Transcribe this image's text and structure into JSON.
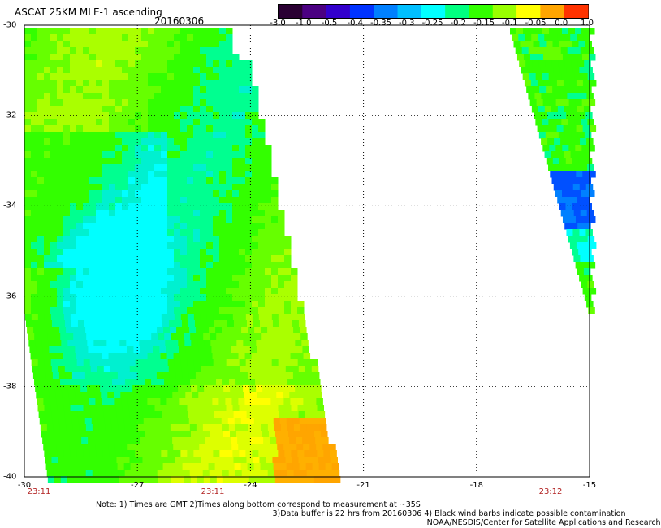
{
  "title": "ASCAT 25KM MLE-1 ascending",
  "date": "20160306",
  "colorbar": {
    "labels": [
      "-3.0",
      "-1.0",
      "-0.5",
      "-0.4",
      "-0.35",
      "-0.3",
      "-0.25",
      "-0.2",
      "-0.15",
      "-0.1",
      "-0.05",
      "0.0",
      "1.0"
    ],
    "colors": [
      "#2a0033",
      "#4b0082",
      "#3300cc",
      "#0033ff",
      "#0080ff",
      "#00bfff",
      "#00ffff",
      "#00ff80",
      "#33ff00",
      "#99ff00",
      "#ffff00",
      "#ffa500",
      "#ff3300"
    ]
  },
  "map": {
    "lon_range": [
      -30,
      -15
    ],
    "lat_range": [
      -40,
      -30
    ],
    "lon_ticks": [
      "-30",
      "-27",
      "-24",
      "-21",
      "-18",
      "-15"
    ],
    "lat_ticks": [
      "-30",
      "-32",
      "-34",
      "-36",
      "-38",
      "-40"
    ],
    "swath_times": [
      "23:11",
      "23:11",
      "23:12"
    ]
  },
  "notes": {
    "line1": "Note: 1) Times are GMT 2)Times along bottom correspond to measurement at ~35S",
    "line2": "3)Data buffer is 22 hrs from 20160306 4) Black wind barbs indicate possible contamination",
    "line3": "NOAA/NESDIS/Center for Satellite Applications and Research"
  }
}
